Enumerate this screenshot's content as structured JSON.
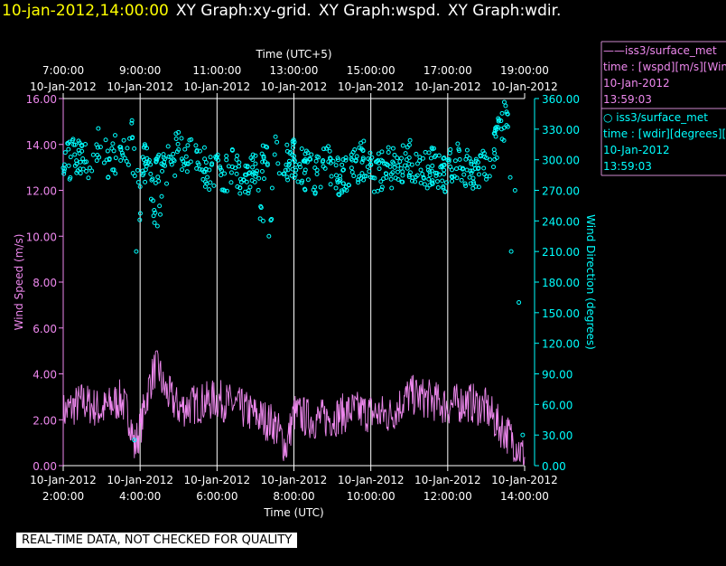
{
  "header": {
    "timestamp": "10-jan-2012,14:00:00",
    "graph_titles": [
      "XY Graph:xy-grid.",
      "XY Graph:wspd.",
      "XY Graph:wdir."
    ]
  },
  "banner": {
    "text": "REAL-TIME DATA, NOT CHECKED FOR QUALITY"
  },
  "colors": {
    "wspd": "#ee88ee",
    "wdir": "#00ffff",
    "axis": "#ffffff",
    "grid": "#ffffff"
  },
  "legend": [
    {
      "series": "——iss3/surface_met",
      "var": "time : [wspd][m/s][Wind",
      "date": "10-Jan-2012",
      "time": "13:59:03"
    },
    {
      "series": "○ iss3/surface_met",
      "var": "time : [wdir][degrees][V",
      "date": "10-Jan-2012",
      "time": "13:59:03"
    }
  ],
  "chart_data": {
    "type": "line",
    "top_axis": {
      "label": "Time (UTC+5)",
      "ticks": [
        {
          "time": "7:00:00",
          "date": "10-Jan-2012"
        },
        {
          "time": "9:00:00",
          "date": "10-Jan-2012"
        },
        {
          "time": "11:00:00",
          "date": "10-Jan-2012"
        },
        {
          "time": "13:00:00",
          "date": "10-Jan-2012"
        },
        {
          "time": "15:00:00",
          "date": "10-Jan-2012"
        },
        {
          "time": "17:00:00",
          "date": "10-Jan-2012"
        },
        {
          "time": "19:00:00",
          "date": "10-Jan-2012"
        }
      ]
    },
    "bottom_axis": {
      "label": "Time (UTC)",
      "ticks": [
        {
          "time": "2:00:00",
          "date": "10-Jan-2012"
        },
        {
          "time": "4:00:00",
          "date": "10-Jan-2012"
        },
        {
          "time": "6:00:00",
          "date": "10-Jan-2012"
        },
        {
          "time": "8:00:00",
          "date": "10-Jan-2012"
        },
        {
          "time": "10:00:00",
          "date": "10-Jan-2012"
        },
        {
          "time": "12:00:00",
          "date": "10-Jan-2012"
        },
        {
          "time": "14:00:00",
          "date": "10-Jan-2012"
        }
      ]
    },
    "xlim_utc_hours": [
      2.0,
      14.0
    ],
    "left_axis": {
      "label": "Wind Speed (m/s)",
      "ylim": [
        0,
        16
      ],
      "ticks": [
        "0.00",
        "2.00",
        "4.00",
        "6.00",
        "8.00",
        "10.00",
        "12.00",
        "14.00",
        "16.00"
      ]
    },
    "right_axis": {
      "label": "Wind Direction (degrees)",
      "ylim": [
        0,
        360
      ],
      "ticks": [
        "0.00",
        "30.00",
        "60.00",
        "90.00",
        "120.00",
        "150.00",
        "180.00",
        "210.00",
        "240.00",
        "270.00",
        "300.00",
        "330.00",
        "360.00"
      ]
    },
    "grid": "vertical lines at labeled time ticks",
    "series": [
      {
        "name": "iss3/surface_met wspd",
        "style": "line",
        "axis": "left",
        "x_utc_hours": [
          2.0,
          2.5,
          3.0,
          3.5,
          3.75,
          3.85,
          4.0,
          4.25,
          4.45,
          4.6,
          5.0,
          5.5,
          6.0,
          6.5,
          7.0,
          7.5,
          7.8,
          8.0,
          8.5,
          9.0,
          9.5,
          10.0,
          10.5,
          11.0,
          11.5,
          12.0,
          12.5,
          13.0,
          13.3,
          13.6,
          13.8,
          14.0
        ],
        "values": [
          2.3,
          2.8,
          2.4,
          2.9,
          2.0,
          0.8,
          1.6,
          3.6,
          4.5,
          3.4,
          2.5,
          2.7,
          2.9,
          2.6,
          2.2,
          1.8,
          0.8,
          2.3,
          2.0,
          2.1,
          2.4,
          2.3,
          2.2,
          3.1,
          2.9,
          2.6,
          2.8,
          2.5,
          1.8,
          1.3,
          0.9,
          0.3
        ]
      },
      {
        "name": "iss3/surface_met wdir",
        "style": "circles",
        "axis": "right",
        "x_utc_hours": [
          2.0,
          2.3,
          2.6,
          2.9,
          3.2,
          3.5,
          3.7,
          3.8,
          3.85,
          3.9,
          4.1,
          4.3,
          4.45,
          4.6,
          4.8,
          5.0,
          5.2,
          5.5,
          5.8,
          6.1,
          6.4,
          6.7,
          7.0,
          7.2,
          7.35,
          7.5,
          7.8,
          8.0,
          8.3,
          8.6,
          8.9,
          9.2,
          9.5,
          9.8,
          10.1,
          10.4,
          10.7,
          11.0,
          11.3,
          11.6,
          11.9,
          12.2,
          12.5,
          12.8,
          13.1,
          13.4,
          13.55,
          13.65,
          13.75,
          13.85,
          13.95
        ],
        "values": [
          292,
          305,
          298,
          312,
          300,
          310,
          295,
          322,
          25,
          210,
          300,
          280,
          235,
          295,
          298,
          310,
          303,
          297,
          290,
          285,
          293,
          280,
          296,
          240,
          225,
          305,
          295,
          300,
          290,
          286,
          298,
          284,
          292,
          300,
          282,
          296,
          288,
          302,
          290,
          294,
          286,
          299,
          290,
          292,
          300,
          330,
          345,
          210,
          270,
          160,
          30
        ]
      }
    ]
  }
}
